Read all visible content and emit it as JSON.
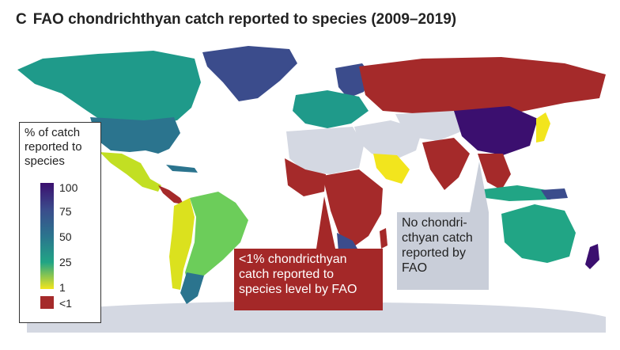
{
  "title": {
    "panel_letter": "C",
    "text": "FAO chondrichthyan catch reported to species (2009–2019)"
  },
  "legend": {
    "title": "% of catch reported to species",
    "ticks": [
      "100",
      "75",
      "50",
      "25",
      "1"
    ],
    "below_label": "<1"
  },
  "callouts": {
    "low": "<1% chondricthyan catch reported to species level by FAO",
    "none": "No chondri-cthyan catch reported by FAO"
  },
  "colors": {
    "below_one": "#a52a2a",
    "no_data": "#d4d8e2",
    "ocean": "#ffffff",
    "scale_top": "#3b0f6f",
    "scale_bottom": "#f2e51d"
  }
}
